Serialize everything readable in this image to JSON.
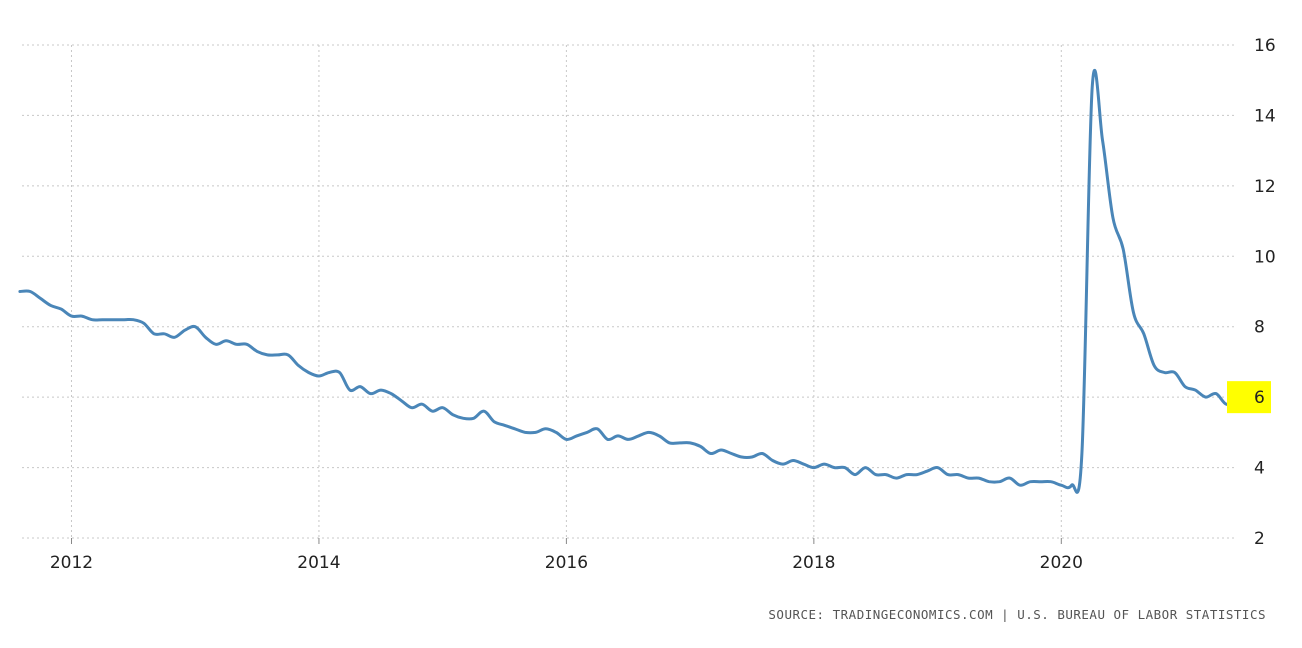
{
  "source_text": "SOURCE: TRADINGECONOMICS.COM | U.S. BUREAU OF LABOR STATISTICS",
  "chart_data": {
    "type": "line",
    "title": "",
    "xlabel": "",
    "ylabel": "",
    "ylim": [
      2,
      16
    ],
    "xlim": [
      2011.6,
      2021.42
    ],
    "grid": true,
    "y_axis_side": "right",
    "x_ticks": [
      "2012",
      "2014",
      "2016",
      "2018",
      "2020"
    ],
    "y_ticks": [
      "2",
      "4",
      "6",
      "8",
      "10",
      "12",
      "14",
      "16"
    ],
    "line_color": "#4a86b8",
    "last_value_label": "6",
    "last_value_highlight": "#ffff00",
    "series": [
      {
        "x": [
          "2011-08",
          "2011-09",
          "2011-10",
          "2011-11",
          "2011-12",
          "2012-01",
          "2012-02",
          "2012-03",
          "2012-04",
          "2012-05",
          "2012-06",
          "2012-07",
          "2012-08",
          "2012-09",
          "2012-10",
          "2012-11",
          "2012-12",
          "2013-01",
          "2013-02",
          "2013-03",
          "2013-04",
          "2013-05",
          "2013-06",
          "2013-07",
          "2013-08",
          "2013-09",
          "2013-10",
          "2013-11",
          "2013-12",
          "2014-01",
          "2014-02",
          "2014-03",
          "2014-04",
          "2014-05",
          "2014-06",
          "2014-07",
          "2014-08",
          "2014-09",
          "2014-10",
          "2014-11",
          "2014-12",
          "2015-01",
          "2015-02",
          "2015-03",
          "2015-04",
          "2015-05",
          "2015-06",
          "2015-07",
          "2015-08",
          "2015-09",
          "2015-10",
          "2015-11",
          "2015-12",
          "2016-01",
          "2016-02",
          "2016-03",
          "2016-04",
          "2016-05",
          "2016-06",
          "2016-07",
          "2016-08",
          "2016-09",
          "2016-10",
          "2016-11",
          "2016-12",
          "2017-01",
          "2017-02",
          "2017-03",
          "2017-04",
          "2017-05",
          "2017-06",
          "2017-07",
          "2017-08",
          "2017-09",
          "2017-10",
          "2017-11",
          "2017-12",
          "2018-01",
          "2018-02",
          "2018-03",
          "2018-04",
          "2018-05",
          "2018-06",
          "2018-07",
          "2018-08",
          "2018-09",
          "2018-10",
          "2018-11",
          "2018-12",
          "2019-01",
          "2019-02",
          "2019-03",
          "2019-04",
          "2019-05",
          "2019-06",
          "2019-07",
          "2019-08",
          "2019-09",
          "2019-10",
          "2019-11",
          "2019-12",
          "2020-01",
          "2020-02",
          "2020-03",
          "2020-04",
          "2020-05",
          "2020-06",
          "2020-07",
          "2020-08",
          "2020-09",
          "2020-10",
          "2020-11",
          "2020-12",
          "2021-01",
          "2021-02",
          "2021-03",
          "2021-04",
          "2021-05",
          "2021-06"
        ],
        "values": [
          9.0,
          9.0,
          8.8,
          8.6,
          8.5,
          8.3,
          8.3,
          8.2,
          8.2,
          8.2,
          8.2,
          8.2,
          8.1,
          7.8,
          7.8,
          7.7,
          7.9,
          8.0,
          7.7,
          7.5,
          7.6,
          7.5,
          7.5,
          7.3,
          7.2,
          7.2,
          7.2,
          6.9,
          6.7,
          6.6,
          6.7,
          6.7,
          6.2,
          6.3,
          6.1,
          6.2,
          6.1,
          5.9,
          5.7,
          5.8,
          5.6,
          5.7,
          5.5,
          5.4,
          5.4,
          5.6,
          5.3,
          5.2,
          5.1,
          5.0,
          5.0,
          5.1,
          5.0,
          4.8,
          4.9,
          5.0,
          5.1,
          4.8,
          4.9,
          4.8,
          4.9,
          5.0,
          4.9,
          4.7,
          4.7,
          4.7,
          4.6,
          4.4,
          4.5,
          4.4,
          4.3,
          4.3,
          4.4,
          4.2,
          4.1,
          4.2,
          4.1,
          4.0,
          4.1,
          4.0,
          4.0,
          3.8,
          4.0,
          3.8,
          3.8,
          3.7,
          3.8,
          3.8,
          3.9,
          4.0,
          3.8,
          3.8,
          3.7,
          3.7,
          3.6,
          3.6,
          3.7,
          3.5,
          3.6,
          3.6,
          3.6,
          3.5,
          3.5,
          4.4,
          14.8,
          13.3,
          11.1,
          10.2,
          8.4,
          7.8,
          6.9,
          6.7,
          6.7,
          6.3,
          6.2,
          6.0,
          6.1,
          5.8,
          5.9
        ]
      }
    ]
  }
}
